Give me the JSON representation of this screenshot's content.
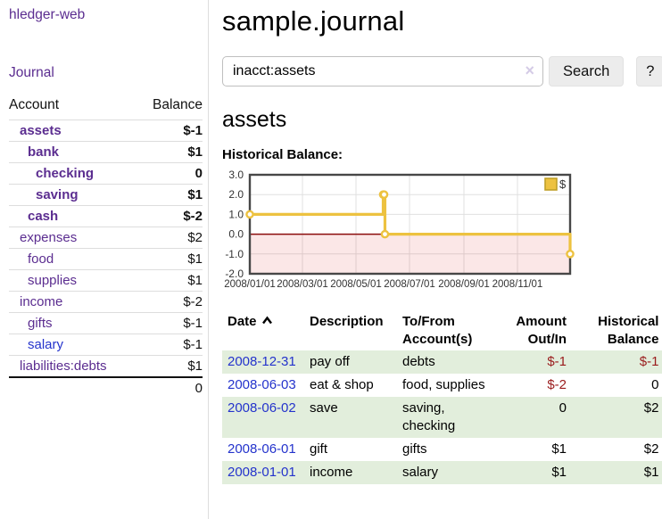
{
  "app": {
    "brand": "hledger-web",
    "nav_journal": "Journal"
  },
  "sidebar": {
    "accounts_header": {
      "account": "Account",
      "balance": "Balance"
    },
    "accounts": [
      {
        "name": "assets",
        "depth": 1,
        "balance": "$-1",
        "bold": true,
        "neg": "strong",
        "unvisited": false
      },
      {
        "name": "bank",
        "depth": 2,
        "balance": "$1",
        "bold": true,
        "neg": "none",
        "unvisited": false
      },
      {
        "name": "checking",
        "depth": 3,
        "balance": "0",
        "bold": true,
        "neg": "none",
        "unvisited": false
      },
      {
        "name": "saving",
        "depth": 3,
        "balance": "$1",
        "bold": true,
        "neg": "none",
        "unvisited": false
      },
      {
        "name": "cash",
        "depth": 2,
        "balance": "$-2",
        "bold": true,
        "neg": "strong",
        "unvisited": false
      },
      {
        "name": "expenses",
        "depth": 1,
        "balance": "$2",
        "bold": false,
        "neg": "none",
        "unvisited": false
      },
      {
        "name": "food",
        "depth": 2,
        "balance": "$1",
        "bold": false,
        "neg": "none",
        "unvisited": false
      },
      {
        "name": "supplies",
        "depth": 2,
        "balance": "$1",
        "bold": false,
        "neg": "none",
        "unvisited": false
      },
      {
        "name": "income",
        "depth": 1,
        "balance": "$-2",
        "bold": false,
        "neg": "soft",
        "unvisited": false
      },
      {
        "name": "gifts",
        "depth": 2,
        "balance": "$-1",
        "bold": false,
        "neg": "soft",
        "unvisited": false
      },
      {
        "name": "salary",
        "depth": 2,
        "balance": "$-1",
        "bold": false,
        "neg": "soft",
        "unvisited": true
      },
      {
        "name": "liabilities:debts",
        "depth": 1,
        "balance": "$1",
        "bold": false,
        "neg": "none",
        "unvisited": false
      }
    ],
    "total": "0"
  },
  "header": {
    "title": "sample.journal"
  },
  "search": {
    "value": "inacct:assets",
    "clear_icon": "×",
    "button": "Search",
    "help_button": "?"
  },
  "account_page": {
    "title": "assets",
    "chart_label": "Historical Balance:"
  },
  "chart_data": {
    "type": "line",
    "title": "Historical Balance:",
    "step": true,
    "series": [
      {
        "name": "$",
        "points": [
          {
            "date": "2008-01-01",
            "value": 1
          },
          {
            "date": "2008-06-01",
            "value": 2
          },
          {
            "date": "2008-06-02",
            "value": 2
          },
          {
            "date": "2008-06-03",
            "value": 0
          },
          {
            "date": "2008-12-31",
            "value": -1
          }
        ]
      }
    ],
    "ylim": [
      -2,
      3
    ],
    "yticks": [
      3,
      2,
      1,
      0,
      -1,
      -2
    ],
    "xrange": [
      "2008-01-01",
      "2008-12-31"
    ],
    "xticks": [
      "2008/01/01",
      "2008/03/01",
      "2008/05/01",
      "2008/07/01",
      "2008/09/01",
      "2008/11/01"
    ],
    "grid": true,
    "legend_position": "top-right",
    "line_color": "#edc240",
    "zero_line_color": "#8c0d0d",
    "negative_region_color": "#fbe5e5"
  },
  "register": {
    "header": [
      {
        "l1": "Date",
        "l2": ""
      },
      {
        "l1": "Description",
        "l2": ""
      },
      {
        "l1": "To/From",
        "l2": "Account(s)"
      },
      {
        "l1": "Amount",
        "l2": "Out/In"
      },
      {
        "l1": "Historical",
        "l2": "Balance"
      }
    ],
    "rows": [
      {
        "date": "2008-12-31",
        "description": "pay off",
        "accounts": "debts",
        "amount": "$-1",
        "balance": "$-1",
        "amount_negative": true,
        "balance_negative": true
      },
      {
        "date": "2008-06-03",
        "description": "eat & shop",
        "accounts": "food, supplies",
        "amount": "$-2",
        "balance": "0",
        "amount_negative": true,
        "balance_negative": false
      },
      {
        "date": "2008-06-02",
        "description": "save",
        "accounts": "saving, checking",
        "amount": "0",
        "balance": "$2",
        "amount_negative": false,
        "balance_negative": false
      },
      {
        "date": "2008-06-01",
        "description": "gift",
        "accounts": "gifts",
        "amount": "$1",
        "balance": "$2",
        "amount_negative": false,
        "balance_negative": false
      },
      {
        "date": "2008-01-01",
        "description": "income",
        "accounts": "salary",
        "amount": "$1",
        "balance": "$1",
        "amount_negative": false,
        "balance_negative": false
      }
    ]
  }
}
